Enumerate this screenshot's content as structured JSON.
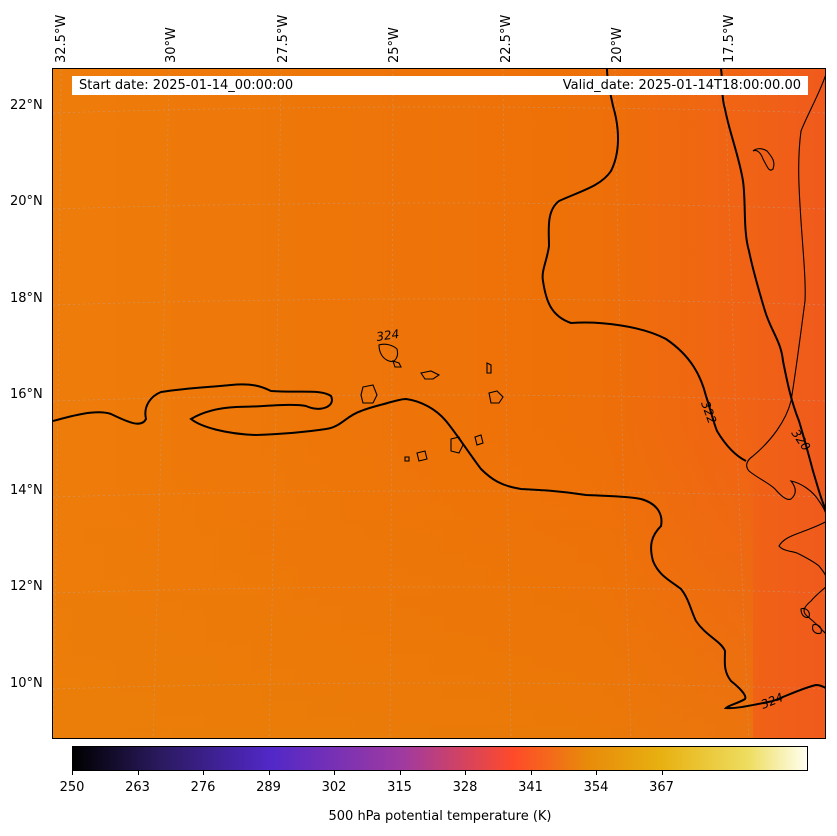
{
  "header": {
    "start_date": "Start date: 2025-01-14_00:00:00",
    "valid_date": "Valid_date: 2025-01-14T18:00:00.00"
  },
  "axes": {
    "lon_labels": [
      "32.5°W",
      "30°W",
      "27.5°W",
      "25°W",
      "22.5°W",
      "20°W",
      "17.5°W"
    ],
    "lat_labels": [
      "22°N",
      "20°N",
      "18°N",
      "16°N",
      "14°N",
      "12°N",
      "10°N"
    ]
  },
  "contour_labels": [
    "324",
    "322",
    "320",
    "324"
  ],
  "colorbar": {
    "title": "500 hPa potential temperature (K)",
    "ticks": [
      "250",
      "263",
      "276",
      "289",
      "302",
      "315",
      "328",
      "341",
      "354",
      "367"
    ]
  },
  "colors": {
    "field_main": "#ee7a08",
    "field_east": "#f06018",
    "contour": "#000000",
    "coastline": "#000000"
  }
}
